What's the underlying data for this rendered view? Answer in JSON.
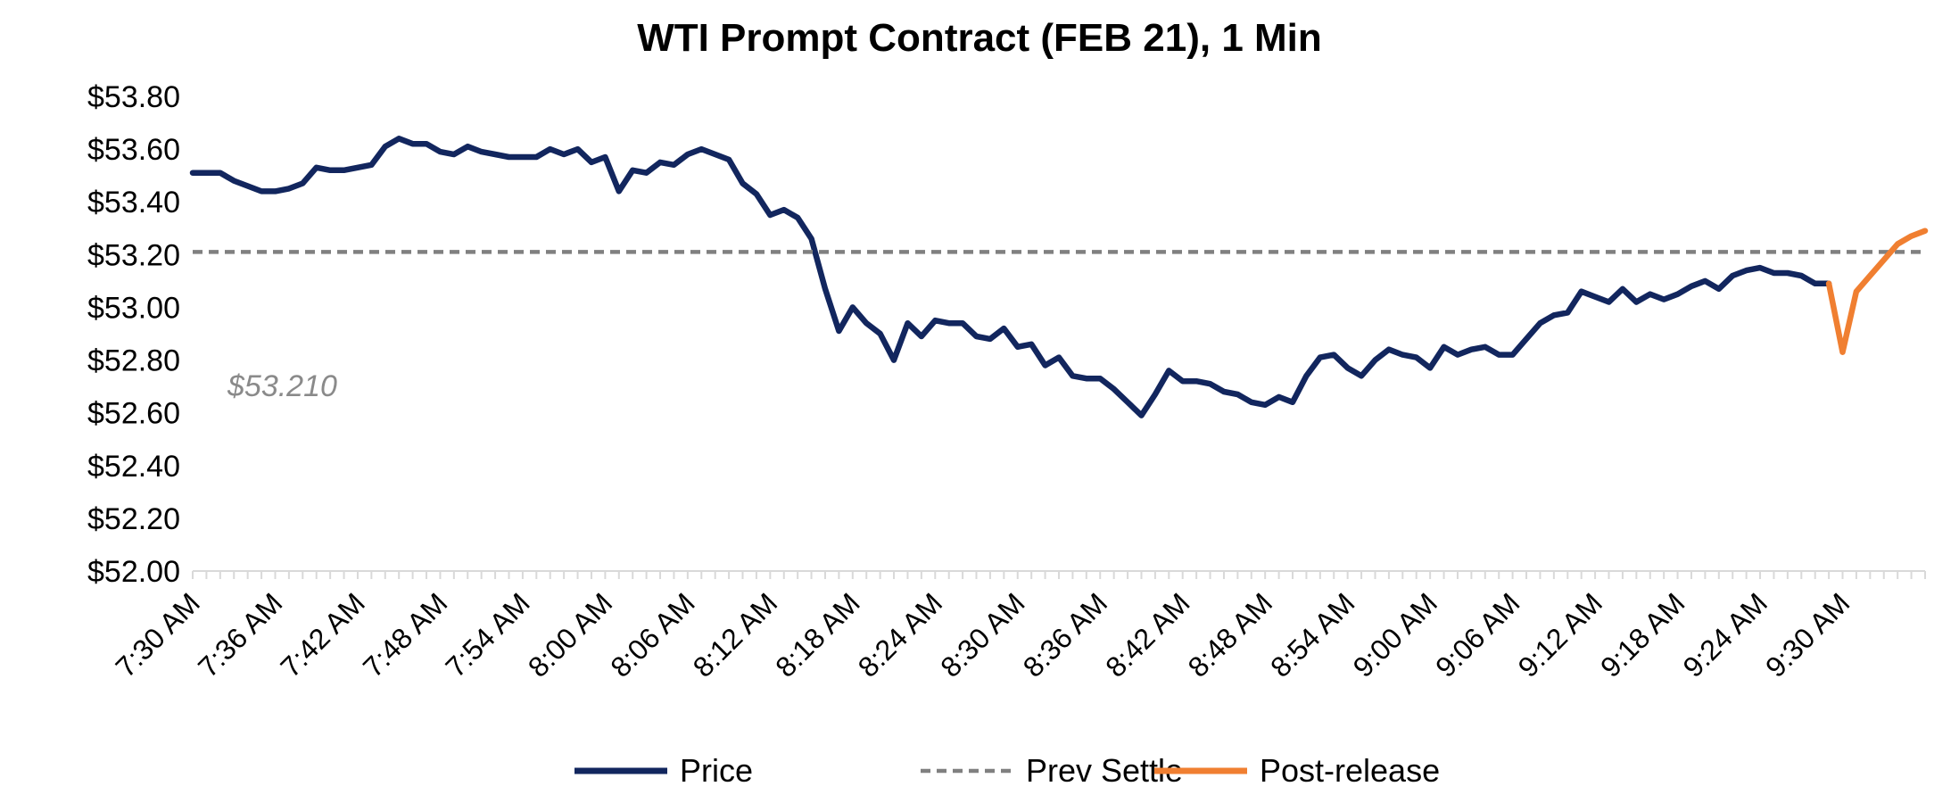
{
  "chart_data": {
    "type": "line",
    "title": "WTI Prompt Contract (FEB 21), 1 Min",
    "xlabel": "",
    "ylabel": "",
    "ylim": [
      52.0,
      53.8
    ],
    "y_tick_values": [
      52.0,
      52.2,
      52.4,
      52.6,
      52.8,
      53.0,
      53.2,
      53.4,
      53.6,
      53.8
    ],
    "y_tick_labels": [
      "$52.00",
      "$52.20",
      "$52.40",
      "$52.60",
      "$52.80",
      "$53.00",
      "$53.20",
      "$53.40",
      "$53.60",
      "$53.80"
    ],
    "x_start_minute": 0,
    "x_end_minute": 126,
    "x_tick_minutes": [
      0,
      6,
      12,
      18,
      24,
      30,
      36,
      42,
      48,
      54,
      60,
      66,
      72,
      78,
      84,
      90,
      96,
      102,
      108,
      114,
      120
    ],
    "x_tick_labels": [
      "7:30 AM",
      "7:36 AM",
      "7:42 AM",
      "7:48 AM",
      "7:54 AM",
      "8:00 AM",
      "8:06 AM",
      "8:12 AM",
      "8:18 AM",
      "8:24 AM",
      "8:30 AM",
      "8:36 AM",
      "8:42 AM",
      "8:48 AM",
      "8:54 AM",
      "9:00 AM",
      "9:06 AM",
      "9:12 AM",
      "9:18 AM",
      "9:24 AM",
      "9:30 AM"
    ],
    "grid": false,
    "legend_position": "bottom",
    "series": [
      {
        "name": "Price",
        "color": "#12265e",
        "style": "solid",
        "start_minute": 0,
        "values": [
          53.51,
          53.51,
          53.51,
          53.48,
          53.46,
          53.44,
          53.44,
          53.45,
          53.47,
          53.53,
          53.52,
          53.52,
          53.53,
          53.54,
          53.61,
          53.64,
          53.62,
          53.62,
          53.59,
          53.58,
          53.61,
          53.59,
          53.58,
          53.57,
          53.57,
          53.57,
          53.6,
          53.58,
          53.6,
          53.55,
          53.57,
          53.44,
          53.52,
          53.51,
          53.55,
          53.54,
          53.58,
          53.6,
          53.58,
          53.56,
          53.47,
          53.43,
          53.35,
          53.37,
          53.34,
          53.26,
          53.07,
          52.91,
          53.0,
          52.94,
          52.9,
          52.8,
          52.94,
          52.89,
          52.95,
          52.94,
          52.94,
          52.89,
          52.88,
          52.92,
          52.85,
          52.86,
          52.78,
          52.81,
          52.74,
          52.73,
          52.73,
          52.69,
          52.64,
          52.59,
          52.67,
          52.76,
          52.72,
          52.72,
          52.71,
          52.68,
          52.67,
          52.64,
          52.63,
          52.66,
          52.64,
          52.74,
          52.81,
          52.82,
          52.77,
          52.74,
          52.8,
          52.84,
          52.82,
          52.81,
          52.77,
          52.85,
          52.82,
          52.84,
          52.85,
          52.82,
          52.82,
          52.88,
          52.94,
          52.97,
          52.98,
          53.06,
          53.04,
          53.02,
          53.07,
          53.02,
          53.05,
          53.03,
          53.05,
          53.08,
          53.1,
          53.07,
          53.12,
          53.14,
          53.15,
          53.13,
          53.13,
          53.12,
          53.09,
          53.09
        ]
      },
      {
        "name": "Prev Settle",
        "color": "#808080",
        "style": "dashed",
        "start_minute": 0,
        "end_minute": 126,
        "value": 53.21
      },
      {
        "name": "Post-release",
        "color": "#f07f31",
        "style": "solid",
        "start_minute": 119,
        "values": [
          53.09,
          52.83,
          53.06,
          53.12,
          53.18,
          53.24,
          53.27,
          53.29
        ]
      }
    ],
    "annotations": [
      {
        "text": "$53.210",
        "attached_to": "Prev Settle"
      }
    ]
  }
}
